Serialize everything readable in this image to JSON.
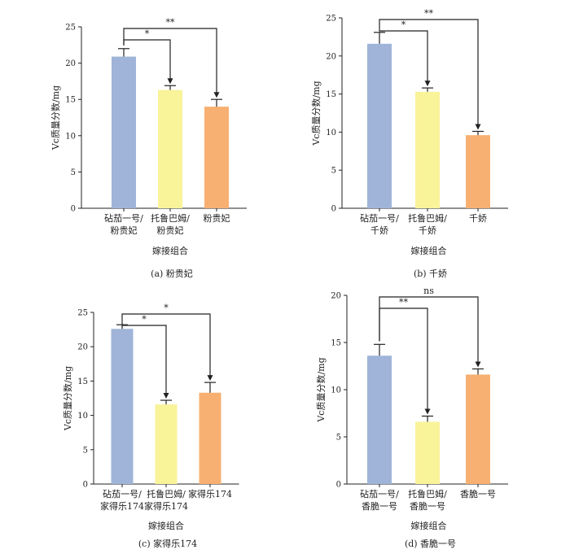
{
  "chart_data": [
    {
      "type": "bar",
      "caption": "(a)  粉贵妃",
      "categories": [
        "砧茄一号/\n粉贵妃",
        "托鲁巴姆/\n粉贵妃",
        "粉贵妃"
      ],
      "values": [
        20.9,
        16.3,
        14.0
      ],
      "errors": [
        1.1,
        0.6,
        1.0
      ],
      "colors": [
        "#9fb4d8",
        "#f9f39a",
        "#f7b072"
      ],
      "xlabel": "嫁接组合",
      "ylabel": "Vc质量分数/mg",
      "ylim": [
        0,
        25
      ],
      "yticks": [
        0,
        5,
        10,
        15,
        20,
        25
      ],
      "significance": [
        {
          "from": 0,
          "to": 1,
          "label": "*"
        },
        {
          "from": 0,
          "to": 2,
          "label": "**"
        }
      ]
    },
    {
      "type": "bar",
      "caption": "(b)  千娇",
      "categories": [
        "砧茄一号/\n千娇",
        "托鲁巴姆/\n千娇",
        "千娇"
      ],
      "values": [
        21.6,
        15.3,
        9.6
      ],
      "errors": [
        1.5,
        0.5,
        0.5
      ],
      "colors": [
        "#9fb4d8",
        "#f9f39a",
        "#f7b072"
      ],
      "xlabel": "嫁接组合",
      "ylabel": "Vc质量分数/mg",
      "ylim": [
        0,
        25
      ],
      "yticks": [
        0,
        5,
        10,
        15,
        20,
        25
      ],
      "significance": [
        {
          "from": 0,
          "to": 1,
          "label": "*"
        },
        {
          "from": 0,
          "to": 2,
          "label": "**"
        }
      ]
    },
    {
      "type": "bar",
      "caption": "(c)  家得乐174",
      "categories": [
        "砧茄一号/\n家得乐174",
        "托鲁巴姆/\n家得乐174",
        "家得乐174"
      ],
      "values": [
        22.6,
        11.6,
        13.3
      ],
      "errors": [
        0.6,
        0.6,
        1.5
      ],
      "colors": [
        "#9fb4d8",
        "#f9f39a",
        "#f7b072"
      ],
      "xlabel": "嫁接组合",
      "ylabel": "Vc质量分数/mg",
      "ylim": [
        0,
        25
      ],
      "yticks": [
        0,
        5,
        10,
        15,
        20,
        25
      ],
      "significance": [
        {
          "from": 0,
          "to": 1,
          "label": "*"
        },
        {
          "from": 0,
          "to": 2,
          "label": "*"
        }
      ]
    },
    {
      "type": "bar",
      "caption": "(d)  香脆一号",
      "categories": [
        "砧茄一号/\n香脆一号",
        "托鲁巴姆/\n香脆一号",
        "香脆一号"
      ],
      "values": [
        13.6,
        6.6,
        11.6
      ],
      "errors": [
        1.2,
        0.6,
        0.6
      ],
      "colors": [
        "#9fb4d8",
        "#f9f39a",
        "#f7b072"
      ],
      "xlabel": "嫁接组合",
      "ylabel": "Vc质量分数/mg",
      "ylim": [
        0,
        20
      ],
      "yticks": [
        0,
        5,
        10,
        15,
        20
      ],
      "significance": [
        {
          "from": 0,
          "to": 1,
          "label": "**"
        },
        {
          "from": 0,
          "to": 2,
          "label": "ns"
        }
      ]
    }
  ]
}
